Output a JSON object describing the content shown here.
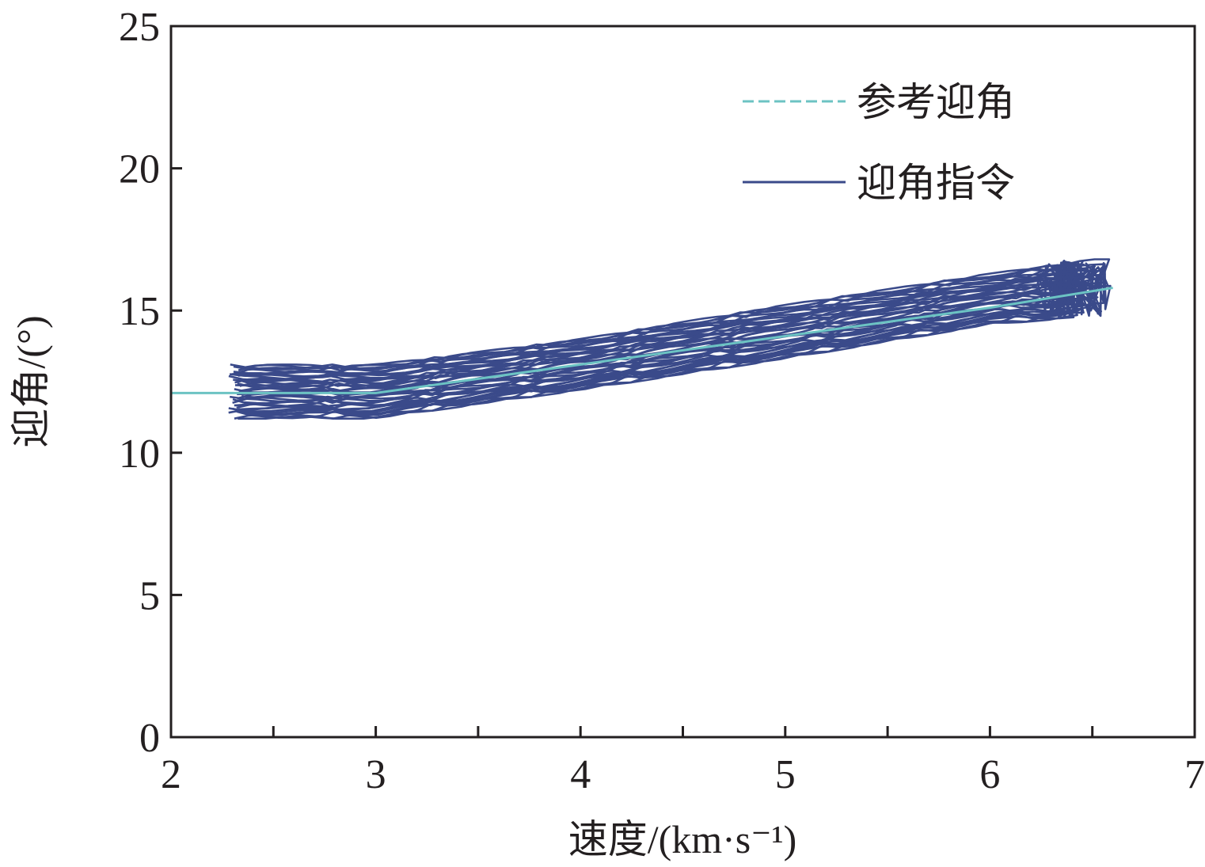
{
  "chart_data": {
    "type": "line",
    "xlabel": "速度/(km·s⁻¹)",
    "ylabel": "迎角/(°)",
    "xlim": [
      2,
      7
    ],
    "ylim": [
      0,
      25
    ],
    "xticks": [
      "2",
      "3",
      "4",
      "5",
      "6",
      "7"
    ],
    "yticks": [
      "0",
      "5",
      "10",
      "15",
      "20",
      "25"
    ],
    "legend_position": "top-right",
    "grid": false,
    "colors": {
      "reference": "#6cc3c3",
      "command": "#3a4a8a",
      "axis": "#231f20"
    },
    "reference": {
      "name": "参考迎角",
      "style": "dashed",
      "x": [
        2.0,
        2.5,
        3.0,
        3.2,
        4.0,
        5.0,
        6.0,
        6.6
      ],
      "y": [
        12.1,
        12.1,
        12.1,
        12.3,
        13.1,
        14.1,
        15.1,
        15.8
      ]
    },
    "command": {
      "name": "迎角指令",
      "style": "solid",
      "runs": 40,
      "x_start_range": [
        2.28,
        2.35
      ],
      "x_end_range": [
        6.35,
        6.6
      ],
      "band_at_x": [
        {
          "x": 2.3,
          "y_min": 11.2,
          "y_max": 13.1
        },
        {
          "x": 3.0,
          "y_min": 11.2,
          "y_max": 13.1
        },
        {
          "x": 4.0,
          "y_min": 12.2,
          "y_max": 14.0
        },
        {
          "x": 5.0,
          "y_min": 13.3,
          "y_max": 15.2
        },
        {
          "x": 6.0,
          "y_min": 14.5,
          "y_max": 16.3
        },
        {
          "x": 6.5,
          "y_min": 14.8,
          "y_max": 16.8
        }
      ]
    }
  }
}
